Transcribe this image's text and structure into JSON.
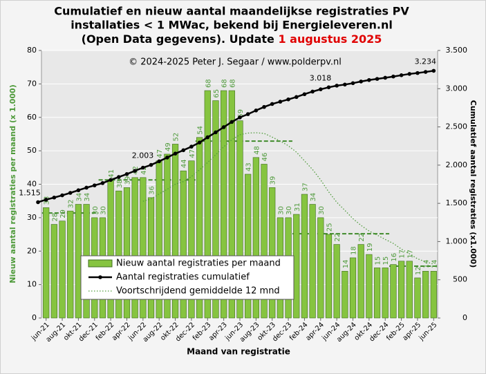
{
  "chart_data": {
    "type": "combo",
    "title": [
      "Cumulatief  en nieuw  aantal maandelijkse  registraties  PV",
      "installaties  < 1 MWac, bekend bij  Energieleveren.nl",
      "(Open Data gegevens). Update "
    ],
    "title_date": "1 augustus 2025",
    "subtitle": "© 2024-2025  Peter J. Segaar / www.polderpv.nl",
    "x_label": "Maand van registratie",
    "y_label": "Nieuw aantal registraties per maand (x 1.000)",
    "y2_label": "Cumulatief aantal registraties (x1.000)",
    "categories": [
      null,
      "jun-21",
      null,
      "aug-21",
      null,
      "okt-21",
      null,
      "dec-21",
      null,
      "feb-22",
      null,
      "apr-22",
      null,
      "jun-22",
      null,
      "aug-22",
      null,
      "okt-22",
      null,
      "dec-22",
      null,
      "feb-23",
      null,
      "apr-23",
      null,
      "jun-23",
      null,
      "aug-23",
      null,
      "okt-23",
      null,
      "dec-23",
      null,
      "feb-24",
      null,
      "apr-24",
      null,
      "jun-24",
      null,
      "aug-24",
      null,
      "okt-24",
      null,
      "dec-24",
      null,
      "feb-25",
      null,
      "apr-25",
      null,
      "jun-25"
    ],
    "ylim": [
      0,
      80
    ],
    "yticks": [
      0,
      10,
      20,
      30,
      40,
      50,
      60,
      70,
      80
    ],
    "y2lim": [
      0,
      3500
    ],
    "y2ticks": [
      0,
      500,
      {
        "value": 1000,
        "label": "1.000"
      },
      {
        "value": 1500,
        "label": "1.500"
      },
      {
        "value": 2000,
        "label": "2.000"
      },
      {
        "value": 2500,
        "label": "2.500"
      },
      {
        "value": 3000,
        "label": "3.000"
      },
      {
        "value": 3500,
        "label": "3.500"
      }
    ],
    "grid": true,
    "legend": "bottom-left",
    "series": [
      {
        "name": "Nieuw aantal registraties per maand",
        "type": "bar",
        "color": "#86c440",
        "values": [
          null,
          33,
          28,
          29,
          32,
          34,
          34,
          30,
          30,
          41,
          38,
          39,
          42,
          42,
          36,
          47,
          49,
          52,
          44,
          47,
          54,
          68,
          65,
          68,
          68,
          59,
          43,
          48,
          46,
          39,
          30,
          30,
          31,
          37,
          34,
          30,
          25,
          22,
          14,
          18,
          22,
          19,
          15,
          15,
          16,
          17,
          17,
          12,
          14,
          14
        ]
      },
      {
        "name": "Aantal registraties cumulatief",
        "type": "line",
        "axis": "y2",
        "color": "#000000",
        "values": [
          1515,
          1548,
          1576,
          1605,
          1637,
          1671,
          1705,
          1735,
          1765,
          1806,
          1844,
          1883,
          1925,
          1967,
          2003,
          2050,
          2099,
          2151,
          2195,
          2242,
          2296,
          2364,
          2429,
          2497,
          2565,
          2624,
          2667,
          2715,
          2761,
          2800,
          2830,
          2860,
          2891,
          2928,
          2962,
          2992,
          3018,
          3040,
          3054,
          3072,
          3094,
          3113,
          3128,
          3143,
          3159,
          3176,
          3193,
          3205,
          3219,
          3234
        ],
        "value_labels": [
          "1.515",
          null,
          null,
          null,
          null,
          null,
          null,
          null,
          null,
          null,
          null,
          null,
          null,
          null,
          "2.003",
          null,
          null,
          null,
          null,
          null,
          null,
          null,
          null,
          null,
          null,
          null,
          null,
          null,
          null,
          null,
          null,
          null,
          null,
          null,
          null,
          null,
          "3.018",
          null,
          null,
          null,
          null,
          null,
          null,
          null,
          null,
          null,
          null,
          null,
          null,
          "3.234"
        ]
      },
      {
        "name": "Voortschrijdend gemiddelde 12 mnd",
        "type": "dotted",
        "color": "#4e9a3a",
        "values": [
          null,
          null,
          null,
          null,
          null,
          null,
          null,
          null,
          null,
          null,
          null,
          null,
          null,
          34.9,
          35.6,
          37.1,
          38.5,
          40.0,
          40.8,
          42.3,
          44.3,
          46.5,
          48.8,
          51.2,
          53.3,
          54.8,
          55.3,
          55.4,
          55.2,
          54.1,
          52.9,
          51.5,
          49.6,
          47.0,
          44.4,
          41.3,
          37.7,
          34.6,
          32.2,
          29.7,
          27.7,
          26.0,
          24.8,
          23.5,
          22.3,
          20.6,
          19.2,
          17.7,
          16.8,
          16.1
        ]
      }
    ],
    "year_averages": {
      "color": "#3f8a2a",
      "values": [
        null,
        31.4,
        31.4,
        31.4,
        31.4,
        31.4,
        31.4,
        31.4,
        41.3,
        41.3,
        41.3,
        41.3,
        41.3,
        41.3,
        41.3,
        41.3,
        41.3,
        41.3,
        41.3,
        41.3,
        52.9,
        52.9,
        52.9,
        52.9,
        52.9,
        52.9,
        52.9,
        52.9,
        52.9,
        52.9,
        52.9,
        52.9,
        25.2,
        25.2,
        25.2,
        25.2,
        25.2,
        25.2,
        25.2,
        25.2,
        25.2,
        25.2,
        25.2,
        25.2,
        15.5,
        15.5,
        15.5,
        15.5,
        15.5,
        15.5
      ]
    }
  }
}
